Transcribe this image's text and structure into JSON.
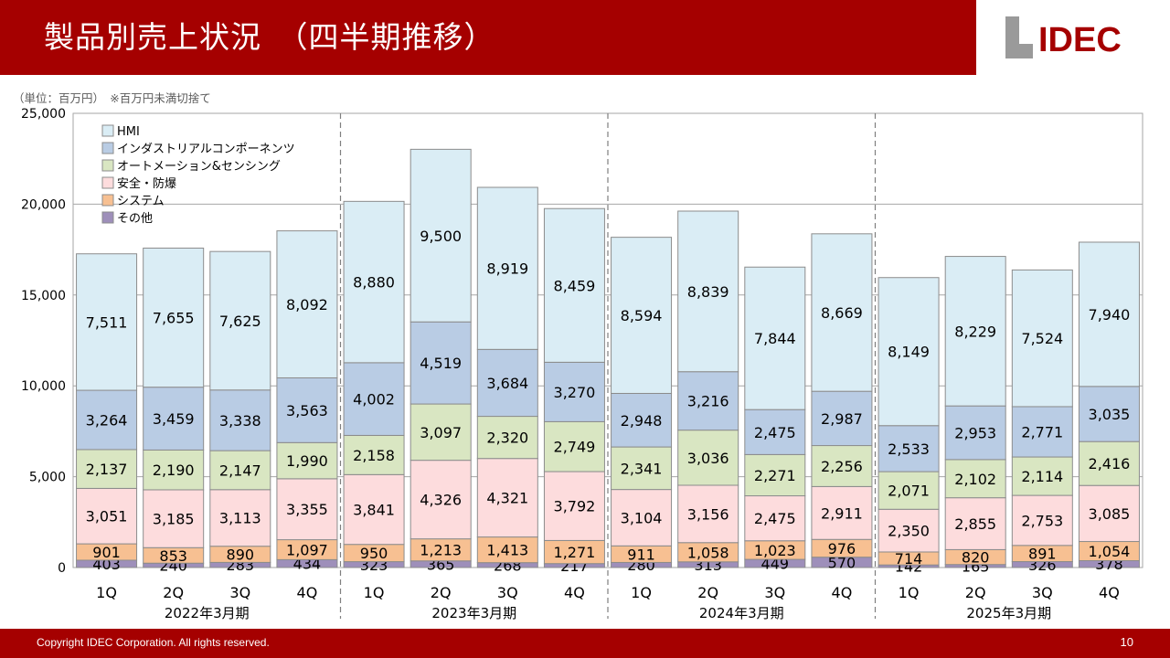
{
  "header": {
    "title": "製品別売上状況　（四半期推移）",
    "logo_text": "IDEC",
    "bg_color": "#a50000"
  },
  "unit_note": "（単位：百万円）　※百万円未満切捨て",
  "footer": {
    "copyright": "Copyright IDEC Corporation. All rights reserved.",
    "page_number": "10"
  },
  "chart_data": {
    "type": "bar",
    "stacked": true,
    "categories": [
      "1Q",
      "2Q",
      "3Q",
      "4Q",
      "1Q",
      "2Q",
      "3Q",
      "4Q",
      "1Q",
      "2Q",
      "3Q",
      "4Q",
      "1Q",
      "2Q",
      "3Q",
      "4Q"
    ],
    "groups": [
      {
        "label": "2022年3月期",
        "quarters": 4
      },
      {
        "label": "2023年3月期",
        "quarters": 4
      },
      {
        "label": "2024年3月期",
        "quarters": 4
      },
      {
        "label": "2025年3月期",
        "quarters": 4
      }
    ],
    "series": [
      {
        "name": "その他",
        "color": "#9e8fba",
        "values": [
          403,
          240,
          283,
          434,
          323,
          365,
          268,
          217,
          280,
          313,
          449,
          570,
          142,
          165,
          326,
          378
        ]
      },
      {
        "name": "システム",
        "color": "#f7c092",
        "values": [
          901,
          853,
          890,
          1097,
          950,
          1213,
          1413,
          1271,
          911,
          1058,
          1023,
          976,
          714,
          820,
          891,
          1054
        ]
      },
      {
        "name": "安全・防爆",
        "color": "#fddcdd",
        "values": [
          3051,
          3185,
          3113,
          3355,
          3841,
          4326,
          4321,
          3792,
          3104,
          3156,
          2475,
          2911,
          2350,
          2855,
          2753,
          3085
        ]
      },
      {
        "name": "オートメーション&センシング",
        "color": "#d9e6c2",
        "values": [
          2137,
          2190,
          2147,
          1990,
          2158,
          3097,
          2320,
          2749,
          2341,
          3036,
          2271,
          2256,
          2071,
          2102,
          2114,
          2416
        ]
      },
      {
        "name": "インダストリアルコンポーネンツ",
        "color": "#b9cce4",
        "values": [
          3264,
          3459,
          3338,
          3563,
          4002,
          4519,
          3684,
          3270,
          2948,
          3216,
          2475,
          2987,
          2533,
          2953,
          2771,
          3035
        ]
      },
      {
        "name": "HMI",
        "color": "#daedf5",
        "values": [
          7511,
          7655,
          7625,
          8092,
          8880,
          9500,
          8919,
          8459,
          8594,
          8839,
          7844,
          8669,
          8149,
          8229,
          7524,
          7940
        ]
      }
    ],
    "y_ticks": [
      "0",
      "5,000",
      "10,000",
      "15,000",
      "20,000",
      "25,000"
    ],
    "ylim": [
      0,
      25000
    ],
    "grid": true,
    "legend_position": "top-left"
  }
}
